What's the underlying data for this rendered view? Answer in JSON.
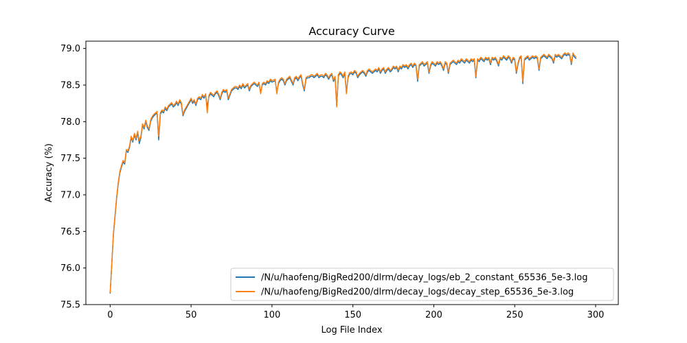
{
  "chart_data": {
    "type": "line",
    "title": "Accuracy Curve",
    "xlabel": "Log File Index",
    "ylabel": "Accuracy (%)",
    "xlim": [
      -15,
      314
    ],
    "ylim": [
      75.5,
      79.1
    ],
    "xticks": [
      0,
      50,
      100,
      150,
      200,
      250,
      300
    ],
    "yticks": [
      75.5,
      76.0,
      76.5,
      77.0,
      77.5,
      78.0,
      78.5,
      79.0
    ],
    "grid": false,
    "legend_position": "lower-right",
    "x": {
      "start": 0,
      "end": 299,
      "step": 1
    },
    "series": [
      {
        "name": "/N/u/haofeng/BigRed200/dlrm/decay_logs/eb_2_constant_65536_5e-3.log",
        "color": "#1f77b4",
        "values": [
          75.65,
          76.05,
          76.45,
          76.7,
          76.95,
          77.15,
          77.3,
          77.38,
          77.45,
          77.42,
          77.6,
          77.58,
          77.65,
          77.78,
          77.72,
          77.82,
          77.75,
          77.85,
          77.7,
          77.78,
          77.95,
          77.9,
          78.0,
          77.92,
          77.88,
          78.0,
          78.05,
          78.08,
          78.1,
          78.12,
          77.75,
          78.1,
          78.14,
          78.12,
          78.18,
          78.15,
          78.2,
          78.22,
          78.24,
          78.2,
          78.22,
          78.26,
          78.22,
          78.28,
          78.24,
          78.08,
          78.14,
          78.18,
          78.22,
          78.26,
          78.3,
          78.25,
          78.28,
          78.22,
          78.3,
          78.32,
          78.3,
          78.35,
          78.32,
          78.36,
          78.2,
          78.34,
          78.38,
          78.36,
          78.34,
          78.38,
          78.4,
          78.36,
          78.3,
          78.38,
          78.42,
          78.4,
          78.42,
          78.3,
          78.36,
          78.42,
          78.44,
          78.46,
          78.46,
          78.44,
          78.48,
          78.45,
          78.5,
          78.46,
          78.48,
          78.5,
          78.42,
          78.48,
          78.5,
          78.52,
          78.5,
          78.48,
          78.52,
          78.4,
          78.5,
          78.52,
          78.5,
          78.54,
          78.52,
          78.56,
          78.54,
          78.55,
          78.56,
          78.4,
          78.52,
          78.56,
          78.58,
          78.56,
          78.5,
          78.56,
          78.58,
          78.6,
          78.55,
          78.5,
          78.58,
          78.6,
          78.56,
          78.6,
          78.62,
          78.5,
          78.42,
          78.58,
          78.6,
          78.6,
          78.62,
          78.62,
          78.6,
          78.62,
          78.64,
          78.6,
          78.62,
          78.62,
          78.6,
          78.64,
          78.62,
          78.58,
          78.62,
          78.64,
          78.55,
          78.6,
          78.22,
          78.62,
          78.66,
          78.64,
          78.6,
          78.66,
          78.4,
          78.6,
          78.65,
          78.66,
          78.64,
          78.68,
          78.66,
          78.6,
          78.64,
          78.66,
          78.68,
          78.66,
          78.62,
          78.68,
          78.7,
          78.68,
          78.66,
          78.68,
          78.7,
          78.68,
          78.72,
          78.66,
          78.7,
          78.72,
          78.66,
          78.7,
          78.72,
          78.68,
          78.7,
          78.74,
          78.72,
          78.74,
          78.68,
          78.74,
          78.72,
          78.76,
          78.74,
          78.76,
          78.72,
          78.76,
          78.78,
          78.74,
          78.78,
          78.76,
          78.55,
          78.76,
          78.78,
          78.8,
          78.76,
          78.78,
          78.8,
          78.66,
          78.76,
          78.8,
          78.78,
          78.76,
          78.8,
          78.78,
          78.8,
          78.76,
          78.7,
          78.8,
          78.78,
          78.66,
          78.78,
          78.8,
          78.82,
          78.8,
          78.78,
          78.82,
          78.8,
          78.84,
          78.82,
          78.8,
          78.84,
          78.82,
          78.8,
          78.84,
          78.82,
          78.84,
          78.6,
          78.84,
          78.82,
          78.86,
          78.84,
          78.82,
          78.86,
          78.84,
          78.86,
          78.78,
          78.86,
          78.84,
          78.86,
          78.82,
          78.76,
          78.86,
          78.84,
          78.88,
          78.86,
          78.84,
          78.88,
          78.86,
          78.8,
          78.86,
          78.84,
          78.66,
          78.78,
          78.86,
          78.88,
          78.52,
          78.84,
          78.86,
          78.88,
          78.84,
          78.86,
          78.88,
          78.86,
          78.88,
          78.86,
          78.7,
          78.86,
          78.88,
          78.9,
          78.88,
          78.86,
          78.9,
          78.88,
          78.86,
          78.8,
          78.9,
          78.88,
          78.9,
          78.88,
          78.86,
          78.9,
          78.92,
          78.9,
          78.92,
          78.9,
          78.78,
          78.92,
          78.88,
          78.86
        ]
      },
      {
        "name": "/N/u/haofeng/BigRed200/dlrm/decay_logs/decay_step_65536_5e-3.log",
        "color": "#ff7f0e",
        "values": [
          75.66,
          76.06,
          76.47,
          76.72,
          76.97,
          77.17,
          77.32,
          77.4,
          77.47,
          77.44,
          77.62,
          77.6,
          77.67,
          77.8,
          77.74,
          77.84,
          77.77,
          77.87,
          77.74,
          77.8,
          77.97,
          77.92,
          78.02,
          77.94,
          77.9,
          78.02,
          78.07,
          78.1,
          78.12,
          78.14,
          77.8,
          78.12,
          78.16,
          78.14,
          78.2,
          78.17,
          78.22,
          78.24,
          78.26,
          78.22,
          78.24,
          78.28,
          78.24,
          78.3,
          78.26,
          78.1,
          78.16,
          78.2,
          78.24,
          78.28,
          78.32,
          78.27,
          78.3,
          78.24,
          78.32,
          78.34,
          78.32,
          78.37,
          78.34,
          78.38,
          78.12,
          78.36,
          78.4,
          78.38,
          78.36,
          78.4,
          78.42,
          78.38,
          78.32,
          78.4,
          78.44,
          78.42,
          78.44,
          78.32,
          78.38,
          78.44,
          78.46,
          78.48,
          78.48,
          78.46,
          78.5,
          78.47,
          78.52,
          78.48,
          78.5,
          78.52,
          78.44,
          78.5,
          78.52,
          78.54,
          78.52,
          78.5,
          78.54,
          78.38,
          78.52,
          78.54,
          78.52,
          78.56,
          78.54,
          78.58,
          78.56,
          78.57,
          78.58,
          78.38,
          78.54,
          78.58,
          78.6,
          78.58,
          78.52,
          78.58,
          78.6,
          78.62,
          78.57,
          78.52,
          78.6,
          78.62,
          78.58,
          78.62,
          78.64,
          78.52,
          78.44,
          78.6,
          78.62,
          78.62,
          78.64,
          78.64,
          78.62,
          78.64,
          78.66,
          78.62,
          78.64,
          78.64,
          78.62,
          78.66,
          78.64,
          78.6,
          78.64,
          78.66,
          78.57,
          78.62,
          78.2,
          78.64,
          78.68,
          78.66,
          78.62,
          78.68,
          78.38,
          78.62,
          78.67,
          78.68,
          78.66,
          78.7,
          78.68,
          78.62,
          78.66,
          78.68,
          78.7,
          78.68,
          78.64,
          78.7,
          78.72,
          78.7,
          78.68,
          78.7,
          78.72,
          78.7,
          78.74,
          78.68,
          78.72,
          78.74,
          78.68,
          78.72,
          78.74,
          78.7,
          78.72,
          78.76,
          78.74,
          78.76,
          78.7,
          78.76,
          78.74,
          78.78,
          78.76,
          78.78,
          78.74,
          78.78,
          78.8,
          78.76,
          78.8,
          78.78,
          78.58,
          78.78,
          78.8,
          78.82,
          78.78,
          78.8,
          78.82,
          78.68,
          78.78,
          78.82,
          78.8,
          78.78,
          78.82,
          78.8,
          78.82,
          78.78,
          78.72,
          78.82,
          78.8,
          78.68,
          78.8,
          78.82,
          78.84,
          78.82,
          78.8,
          78.84,
          78.82,
          78.86,
          78.84,
          78.82,
          78.86,
          78.84,
          78.82,
          78.86,
          78.84,
          78.86,
          78.62,
          78.86,
          78.84,
          78.88,
          78.86,
          78.84,
          78.88,
          78.86,
          78.88,
          78.8,
          78.88,
          78.86,
          78.88,
          78.84,
          78.78,
          78.88,
          78.86,
          78.9,
          78.88,
          78.86,
          78.9,
          78.88,
          78.82,
          78.88,
          78.86,
          78.68,
          78.8,
          78.88,
          78.9,
          78.55,
          78.86,
          78.88,
          78.9,
          78.86,
          78.88,
          78.9,
          78.88,
          78.9,
          78.88,
          78.72,
          78.88,
          78.9,
          78.92,
          78.9,
          78.88,
          78.92,
          78.9,
          78.88,
          78.82,
          78.92,
          78.9,
          78.92,
          78.9,
          78.88,
          78.92,
          78.94,
          78.92,
          78.94,
          78.92,
          78.8,
          78.94,
          78.9,
          78.88
        ]
      }
    ]
  }
}
